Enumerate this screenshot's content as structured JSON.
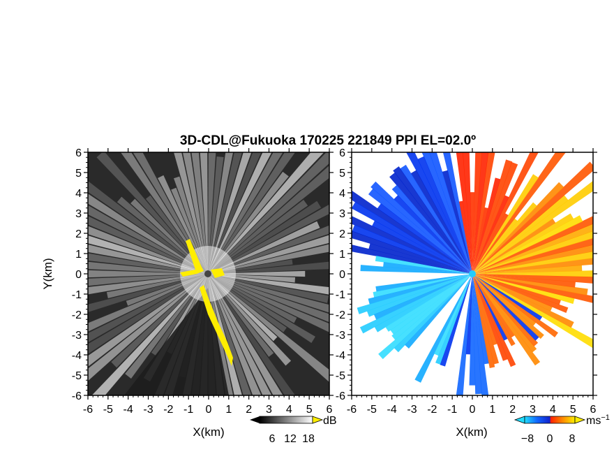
{
  "figure": {
    "title": "3D-CDL@Fukuoka 170225 221849 PPI EL=02.0º"
  },
  "left_panel": {
    "xlabel": "X(km)",
    "ylabel": "Y(km)",
    "x_ticks": [
      "-6",
      "-5",
      "-4",
      "-3",
      "-2",
      "-1",
      "0",
      "1",
      "2",
      "3",
      "4",
      "5",
      "6"
    ],
    "y_ticks": [
      "6",
      "5",
      "4",
      "3",
      "2",
      "1",
      "0",
      "-1",
      "-2",
      "-3",
      "-4",
      "-5",
      "-6"
    ],
    "colorbar": {
      "unit": "dB",
      "ticks": [
        "6",
        "12",
        "18"
      ]
    }
  },
  "right_panel": {
    "xlabel": "X(km)",
    "x_ticks": [
      "-6",
      "-5",
      "-4",
      "-3",
      "-2",
      "-1",
      "0",
      "1",
      "2",
      "3",
      "4",
      "5",
      "6"
    ],
    "y_ticks": [
      "6",
      "5",
      "4",
      "3",
      "2",
      "1",
      "0",
      "-1",
      "-2",
      "-3",
      "-4",
      "-5",
      "-6"
    ],
    "colorbar": {
      "unit": "ms",
      "unit_exp": "−1",
      "ticks": [
        "−8",
        "0",
        "8"
      ]
    }
  },
  "colors": {
    "background_dark": "#2a2a2a",
    "echo_highlight": "#ffee00",
    "approaching": "#0033ee",
    "receding": "#ff3300",
    "light_blue": "#22ccff",
    "yellow": "#ffcc00"
  }
}
